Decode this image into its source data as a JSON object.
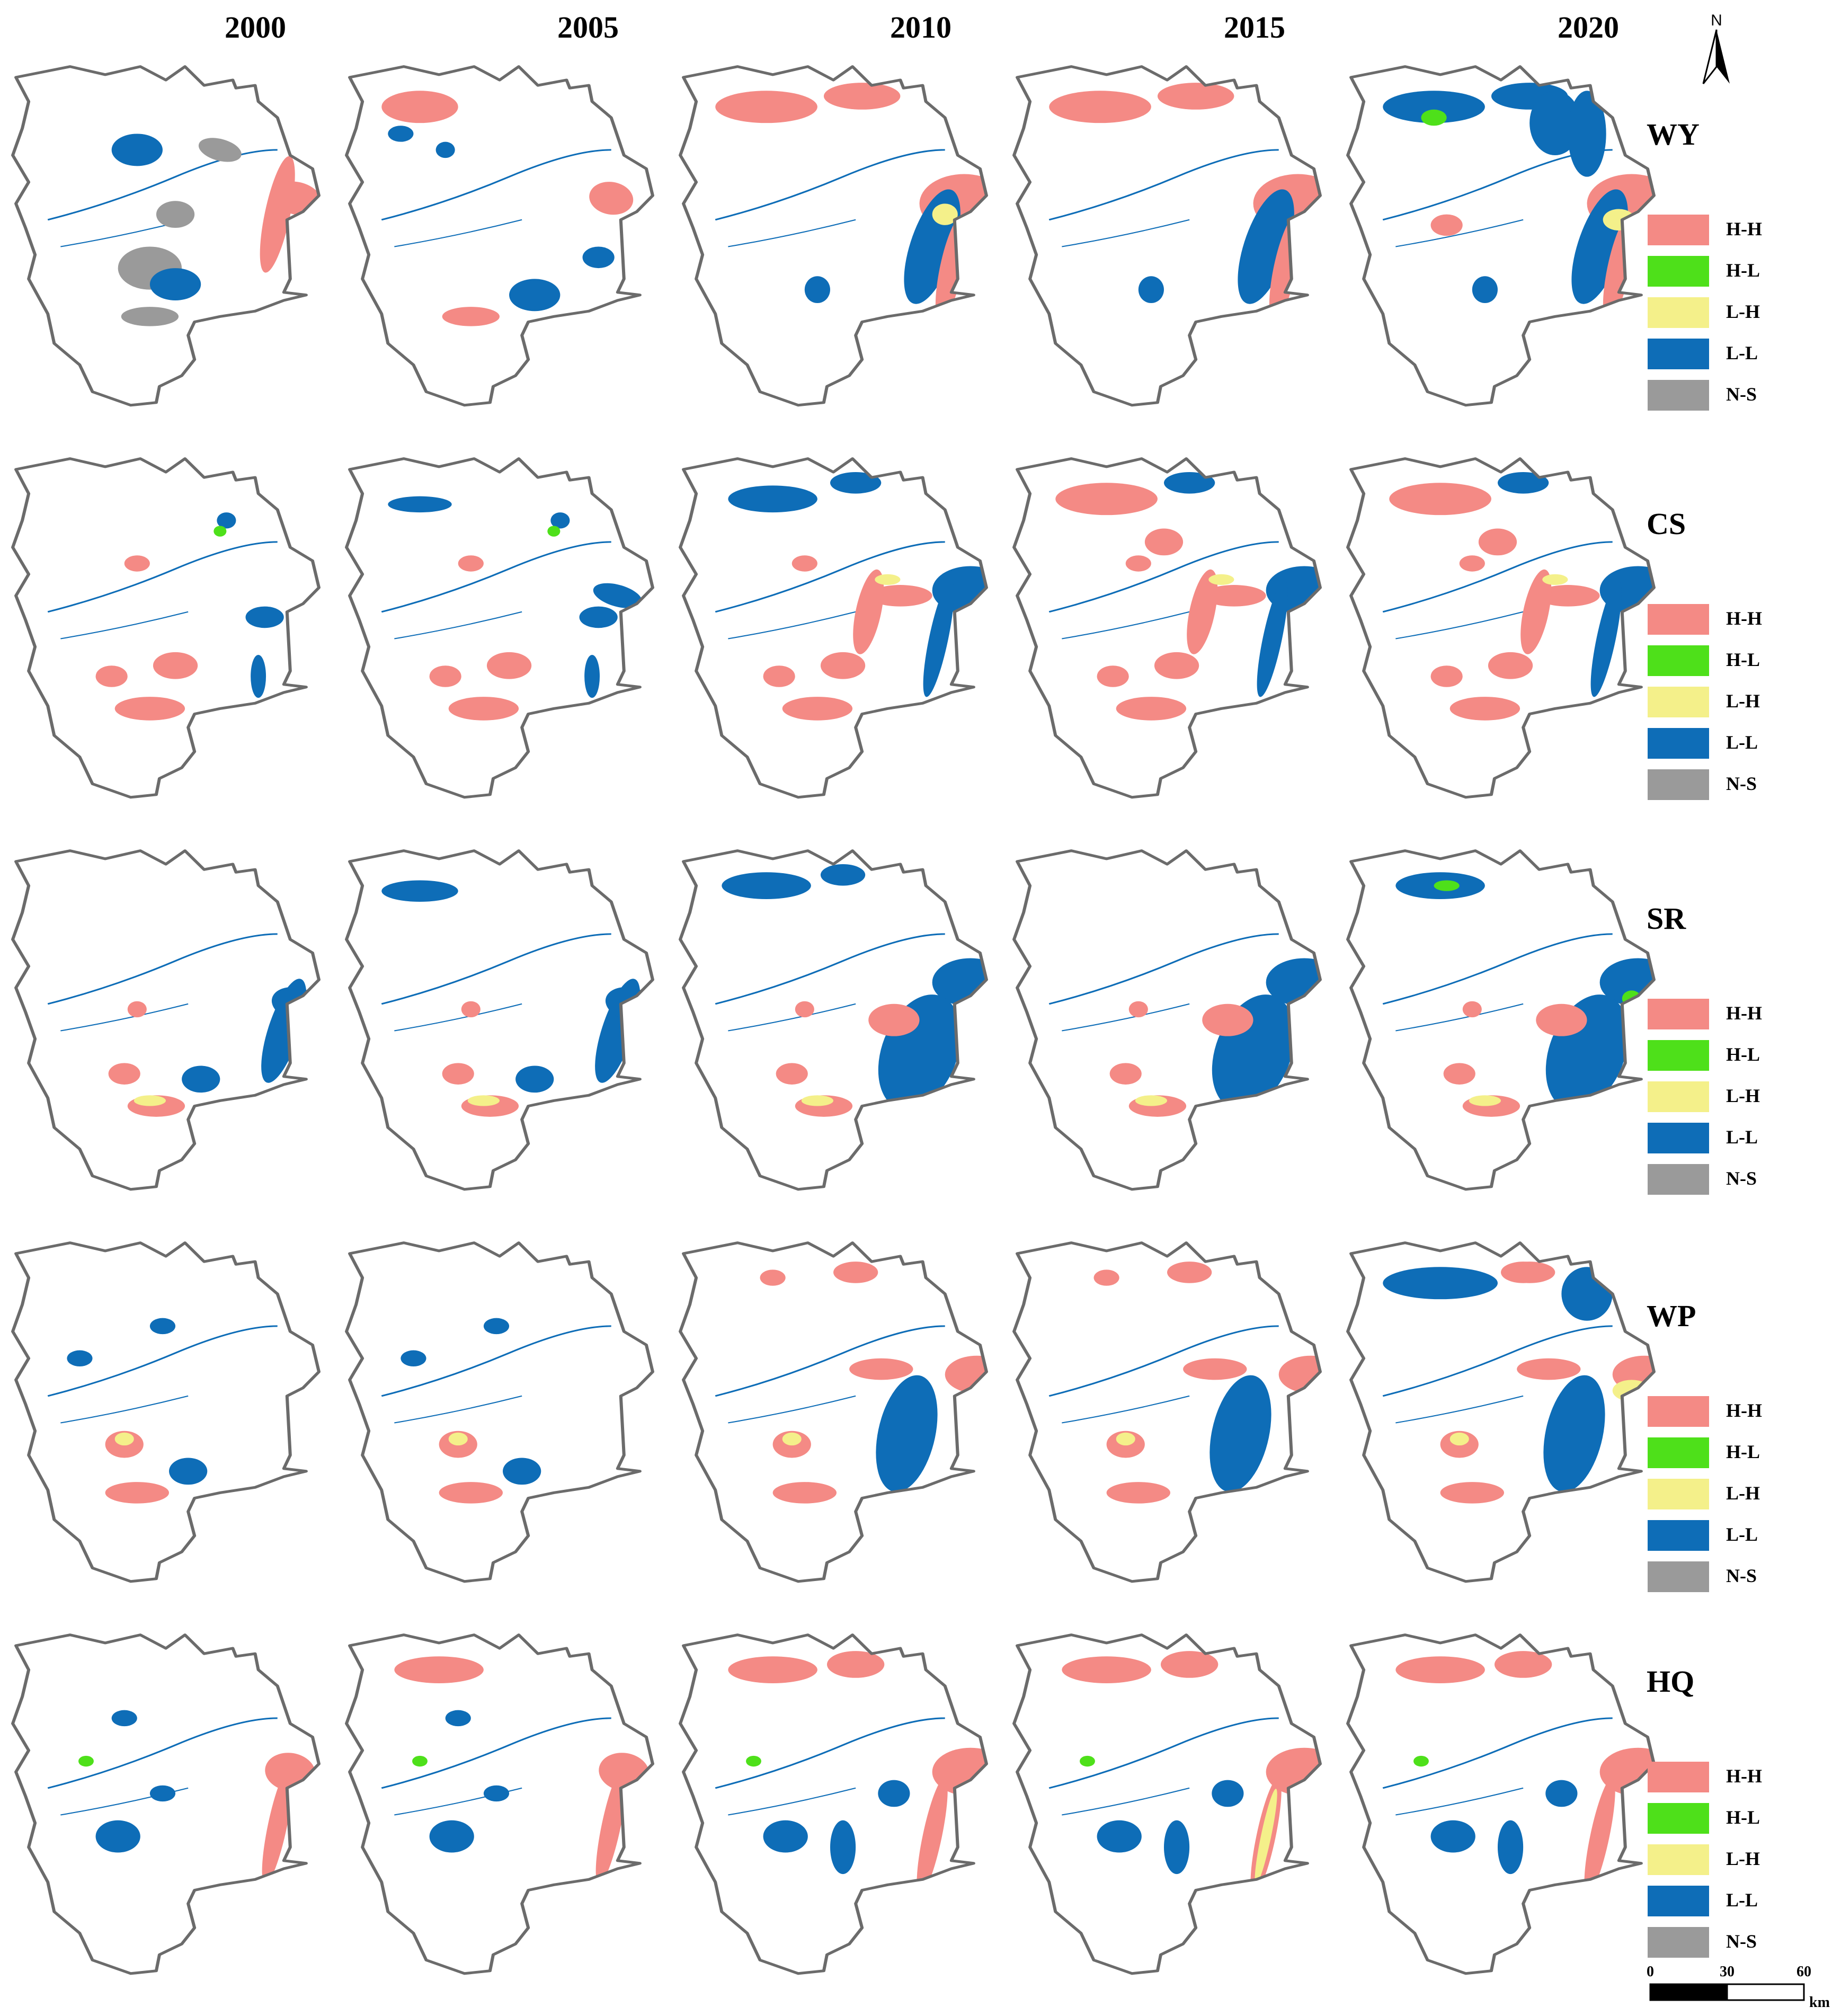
{
  "years": [
    "2000",
    "2005",
    "2010",
    "2015",
    "2020"
  ],
  "rows": [
    {
      "code": "WY",
      "legend": [
        "H-H",
        "H-L",
        "L-H",
        "L-L",
        "N-S"
      ]
    },
    {
      "code": "CS",
      "legend": [
        "H-H",
        "H-L",
        "L-H",
        "L-L",
        "N-S"
      ]
    },
    {
      "code": "SR",
      "legend": [
        "H-H",
        "H-L",
        "L-H",
        "L-L",
        "N-S"
      ]
    },
    {
      "code": "WP",
      "legend": [
        "H-H",
        "H-L",
        "L-H",
        "L-L",
        "N-S"
      ]
    },
    {
      "code": "HQ",
      "legend": [
        "H-H",
        "H-L",
        "L-H",
        "L-L",
        "N-S"
      ]
    }
  ],
  "legend_colors": {
    "H-H": "#f48a85",
    "H-L": "#4ee01a",
    "L-H": "#f4f08a",
    "L-L": "#0e6db7",
    "N-S": "#9a9a9a"
  },
  "north_arrow": {
    "label": "N"
  },
  "scale_bar": {
    "ticks": [
      "0",
      "30",
      "60"
    ],
    "unit": "km"
  }
}
